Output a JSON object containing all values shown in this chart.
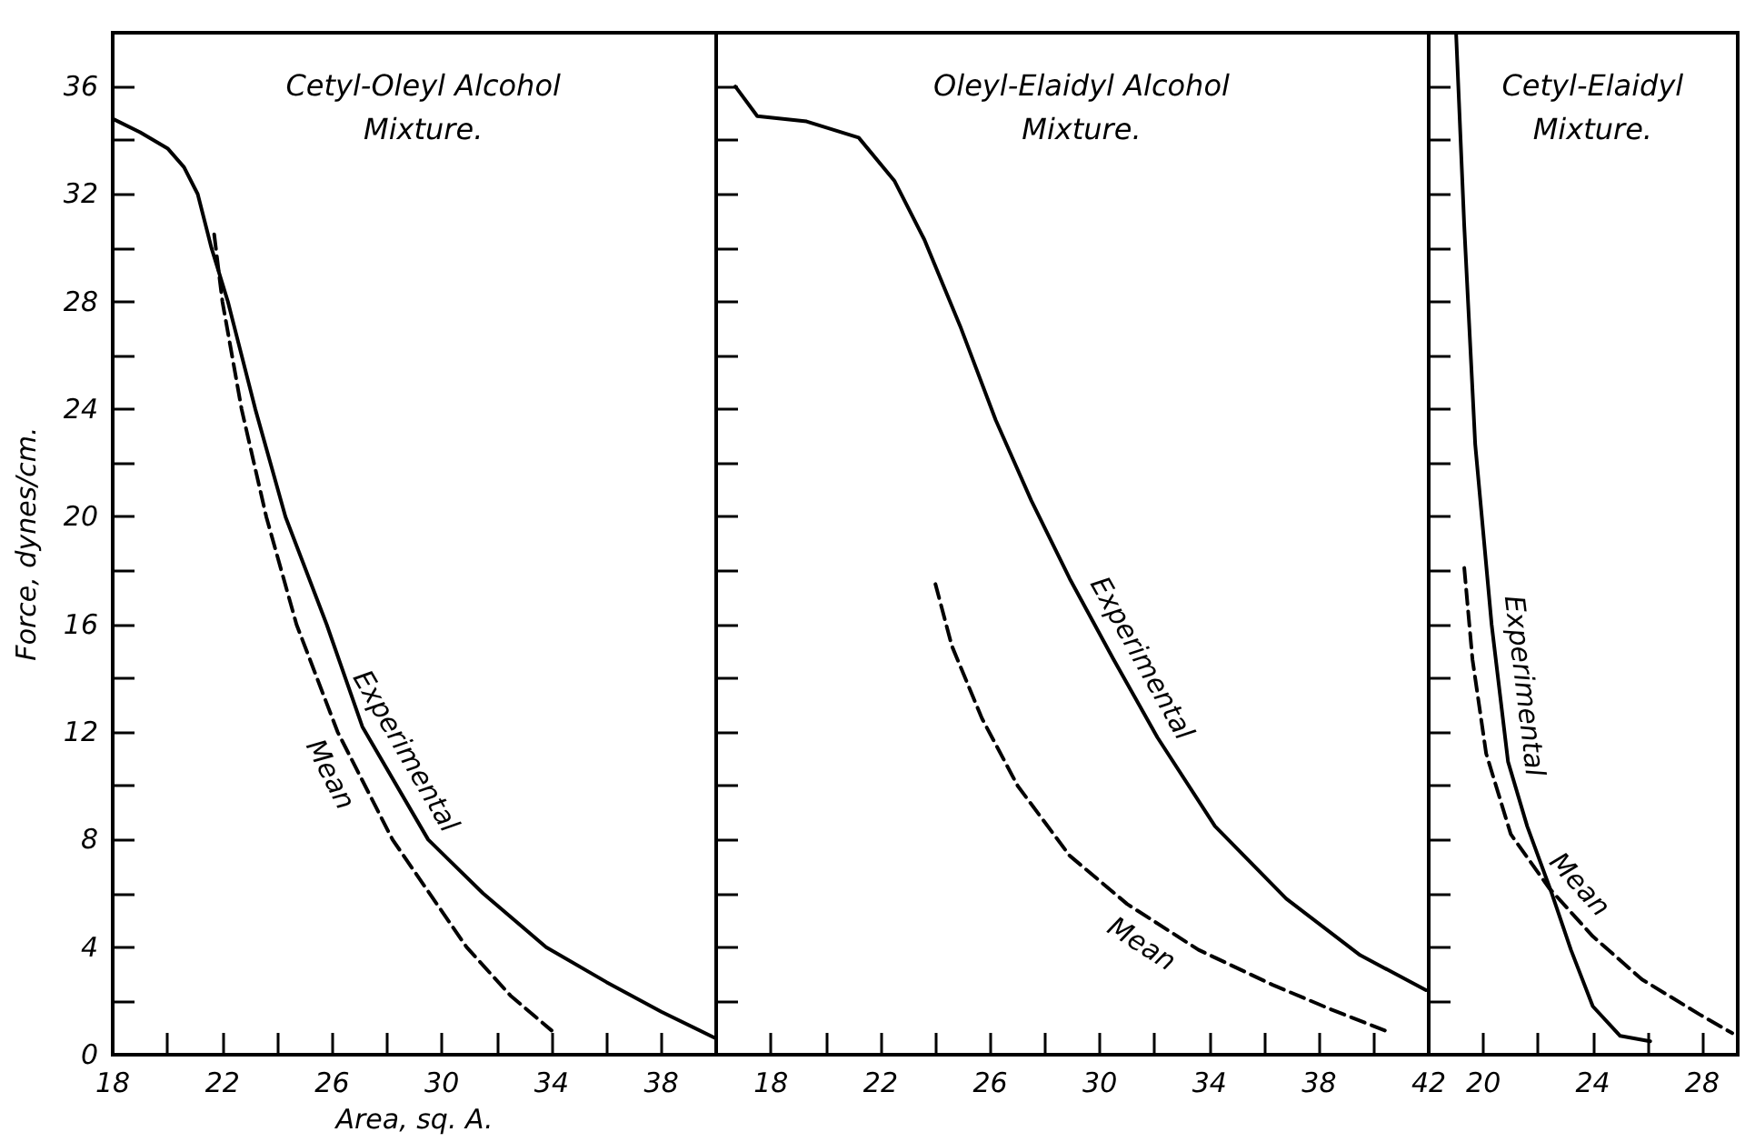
{
  "chart_data": [
    {
      "type": "line",
      "title": "Cetyl-Oleyl Alcohol\nMixture.",
      "ylabel": "Force, dynes/cm.",
      "xlabel": "Area, sq. A.",
      "xlim": [
        18,
        40
      ],
      "ylim": [
        0,
        38
      ],
      "xticks": [
        18,
        {
          "value": 20,
          "label": null
        },
        22,
        {
          "value": 24,
          "label": null
        },
        26,
        {
          "value": 28,
          "label": null
        },
        30,
        {
          "value": 32,
          "label": null
        },
        34,
        {
          "value": 36,
          "label": null
        },
        38
      ],
      "yticks": [
        0,
        {
          "value": 2,
          "label": null
        },
        4,
        {
          "value": 6,
          "label": null
        },
        8,
        {
          "value": 10,
          "label": null
        },
        12,
        {
          "value": 14,
          "label": null
        },
        16,
        {
          "value": 18,
          "label": null
        },
        20,
        {
          "value": 22,
          "label": null
        },
        24,
        {
          "value": 26,
          "label": null
        },
        28,
        {
          "value": 30,
          "label": null
        },
        32,
        {
          "value": 34,
          "label": null
        },
        36
      ],
      "grid": false,
      "legend": false,
      "marker": "none",
      "series": [
        {
          "name": "Experimental",
          "color": "#000000",
          "line_style": "solid",
          "x": [
            18,
            19,
            20,
            20.6,
            21.1,
            21.6,
            22.2,
            23.2,
            24.3,
            25.8,
            27.1,
            29.5,
            31.5,
            33.8,
            36,
            38,
            40
          ],
          "values": [
            34.8,
            34.3,
            33.7,
            33,
            32,
            30,
            28,
            24,
            20,
            16,
            12.2,
            8,
            6,
            4,
            2.7,
            1.6,
            0.6
          ]
        },
        {
          "name": "Mean",
          "color": "#000000",
          "line_style": "dashed",
          "x": [
            21.7,
            22,
            22.7,
            23.6,
            24.7,
            26.2,
            28.2,
            30.9,
            32.5,
            34
          ],
          "values": [
            30.5,
            28,
            24,
            20,
            16,
            12,
            8,
            4,
            2.2,
            0.9
          ]
        }
      ]
    },
    {
      "type": "line",
      "title": "Oleyl-Elaidyl Alcohol\nMixture.",
      "xlim": [
        16,
        42
      ],
      "ylim": [
        0,
        38
      ],
      "tick_labels": "x",
      "xticks": [
        18,
        {
          "value": 20,
          "label": null
        },
        22,
        {
          "value": 24,
          "label": null
        },
        26,
        {
          "value": 28,
          "label": null
        },
        30,
        {
          "value": 32,
          "label": null
        },
        34,
        {
          "value": 36,
          "label": null
        },
        38,
        {
          "value": 40,
          "label": null
        },
        42
      ],
      "yticks": [
        0,
        {
          "value": 2,
          "label": null
        },
        4,
        {
          "value": 6,
          "label": null
        },
        8,
        {
          "value": 10,
          "label": null
        },
        12,
        {
          "value": 14,
          "label": null
        },
        16,
        {
          "value": 18,
          "label": null
        },
        20,
        {
          "value": 22,
          "label": null
        },
        24,
        {
          "value": 26,
          "label": null
        },
        28,
        {
          "value": 30,
          "label": null
        },
        32,
        {
          "value": 34,
          "label": null
        },
        36
      ],
      "grid": false,
      "legend": false,
      "marker": "none",
      "series": [
        {
          "name": "Experimental",
          "color": "#000000",
          "line_style": "solid",
          "x": [
            16.7,
            17.5,
            19.3,
            21.2,
            22.5,
            23.6,
            24.9,
            26.2,
            27.5,
            28.9,
            30.5,
            32.1,
            34.2,
            36.8,
            39.5,
            41.9
          ],
          "values": [
            36,
            34.9,
            34.7,
            34.1,
            32.5,
            30.3,
            27.1,
            23.6,
            20.6,
            17.7,
            14.7,
            11.8,
            8.5,
            5.8,
            3.7,
            2.4
          ]
        },
        {
          "name": "Mean",
          "color": "#000000",
          "line_style": "dashed",
          "x": [
            24,
            24.6,
            25.7,
            27,
            28.9,
            31,
            33.6,
            36.3,
            38.4,
            40.4
          ],
          "values": [
            17.5,
            15.2,
            12.5,
            10,
            7.4,
            5.6,
            3.9,
            2.6,
            1.7,
            0.9
          ]
        }
      ]
    },
    {
      "type": "line",
      "title": "Cetyl-Elaidyl\nMixture.",
      "xlim": [
        18,
        29.3
      ],
      "ylim": [
        0,
        38
      ],
      "tick_labels": "x",
      "xticks": [
        20,
        {
          "value": 22,
          "label": null
        },
        24,
        {
          "value": 26,
          "label": null
        },
        28
      ],
      "yticks": [
        0,
        {
          "value": 2,
          "label": null
        },
        4,
        {
          "value": 6,
          "label": null
        },
        8,
        {
          "value": 10,
          "label": null
        },
        12,
        {
          "value": 14,
          "label": null
        },
        16,
        {
          "value": 18,
          "label": null
        },
        20,
        {
          "value": 22,
          "label": null
        },
        24,
        {
          "value": 26,
          "label": null
        },
        28,
        {
          "value": 30,
          "label": null
        },
        32,
        {
          "value": 34,
          "label": null
        },
        36
      ],
      "grid": false,
      "legend": false,
      "marker": "none",
      "series": [
        {
          "name": "Experimental",
          "color": "#000000",
          "line_style": "solid",
          "x": [
            19,
            19.3,
            19.7,
            20.3,
            20.9,
            21.6,
            22.5,
            23.2,
            24,
            25,
            26.1
          ],
          "values": [
            38,
            30.8,
            22.7,
            16,
            10.9,
            8.5,
            6,
            3.9,
            1.8,
            0.7,
            0.5
          ]
        },
        {
          "name": "Mean",
          "color": "#000000",
          "line_style": "dashed",
          "x": [
            19.3,
            19.6,
            20.1,
            21,
            22.4,
            24,
            25.8,
            27.9,
            29.1
          ],
          "values": [
            18.1,
            14.7,
            11.2,
            8.2,
            6.2,
            4.4,
            2.8,
            1.5,
            0.8
          ]
        }
      ]
    }
  ]
}
